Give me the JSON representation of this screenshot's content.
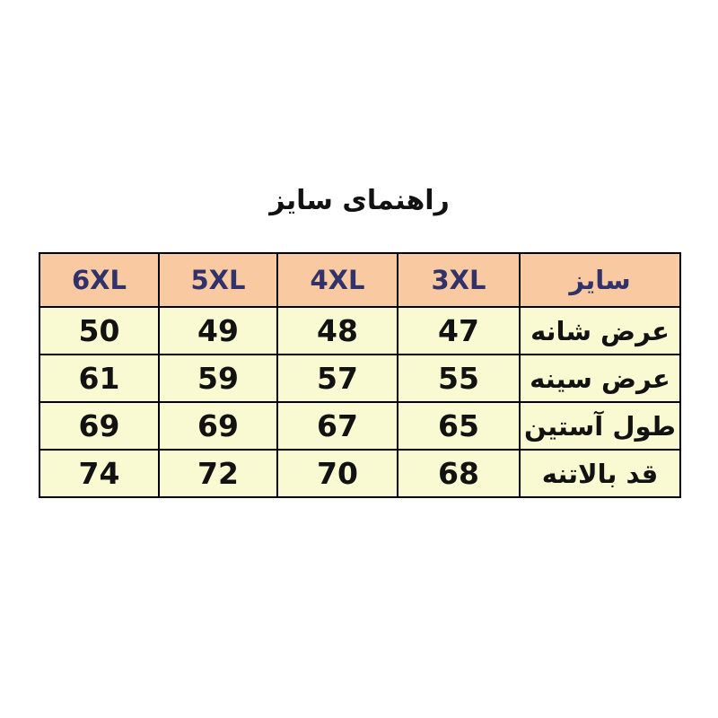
{
  "title": "راهنمای سایز",
  "chart_data": {
    "type": "table",
    "title": "راهنمای سایز",
    "columns": [
      "6XL",
      "5XL",
      "4XL",
      "3XL",
      "سایز"
    ],
    "rows": [
      {
        "label": "عرض شانه",
        "values": [
          "50",
          "49",
          "48",
          "47"
        ]
      },
      {
        "label": "عرض سینه",
        "values": [
          "61",
          "59",
          "57",
          "55"
        ]
      },
      {
        "label": "طول آستین",
        "values": [
          "69",
          "69",
          "67",
          "65"
        ]
      },
      {
        "label": "قد بالاتنه",
        "values": [
          "74",
          "72",
          "70",
          "68"
        ]
      }
    ]
  },
  "colors": {
    "page_bg": "#ffffff",
    "header_bg": "#f9c9a1",
    "row_bg": "#fafad2",
    "header_text": "#32326b",
    "body_text": "#121212",
    "border": "#000000"
  }
}
